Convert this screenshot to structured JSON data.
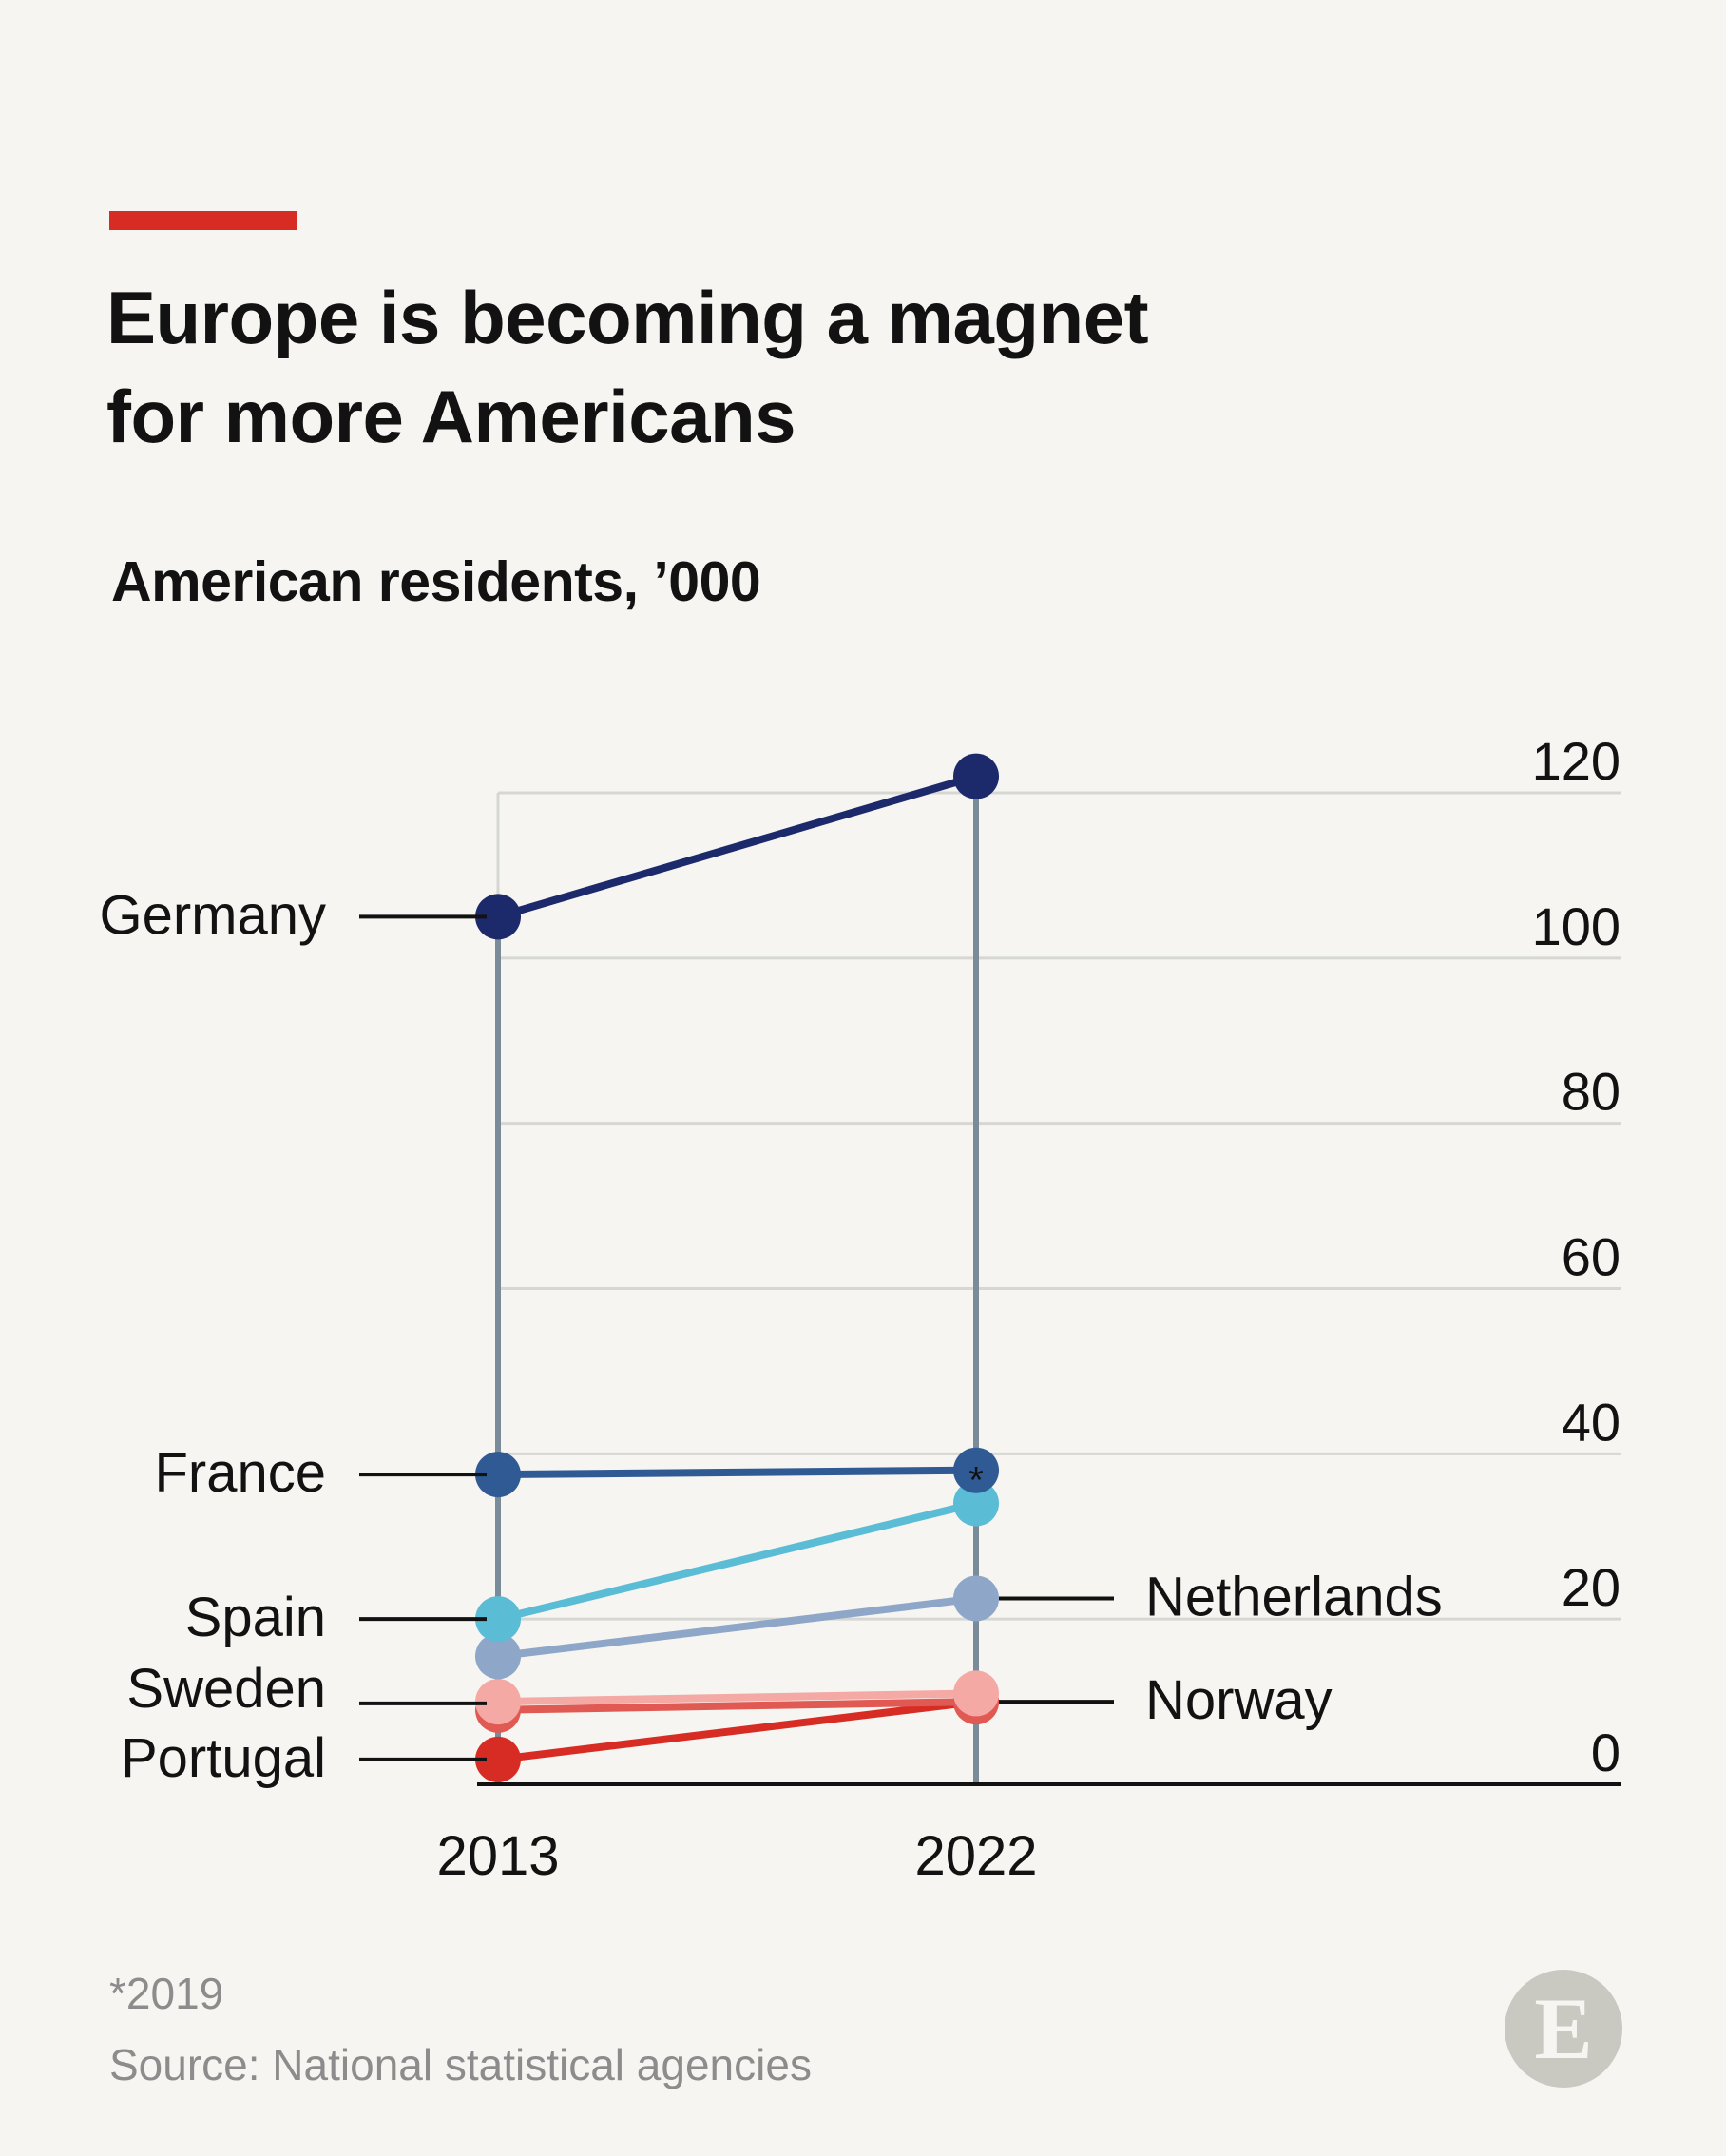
{
  "header": {
    "title_line1": "Europe is becoming a magnet",
    "title_line2": "for more Americans",
    "subtitle": "American residents, ’000",
    "accent_color": "#d72c24"
  },
  "chart_data": {
    "type": "line",
    "title": "Europe is becoming a magnet for more Americans",
    "subtitle": "American residents, ’000",
    "x": [
      "2013",
      "2022"
    ],
    "ylim": [
      0,
      120
    ],
    "yticks": [
      "0",
      "20",
      "40",
      "60",
      "80",
      "100",
      "120"
    ],
    "grid": true,
    "series": [
      {
        "name": "Germany",
        "values": [
          105,
          122
        ],
        "color": "#1c2a6b",
        "label_side": "left"
      },
      {
        "name": "France",
        "values": [
          37.5,
          38
        ],
        "color": "#2f5a94",
        "label_side": "left",
        "end_marker": "*"
      },
      {
        "name": "",
        "values": [
          20,
          34
        ],
        "color": "#5bbcd6"
      },
      {
        "name": "Netherlands",
        "values": [
          15.5,
          22.5
        ],
        "color": "#8ea6c8",
        "label_side": "right"
      },
      {
        "name": "Sweden",
        "values": [
          10,
          11
        ],
        "color": "#f4a9a4",
        "label_side": "left"
      },
      {
        "name": "Norway",
        "values": [
          9,
          10
        ],
        "color": "#e05a53",
        "label_side": "right"
      },
      {
        "name": "Portugal",
        "values": [
          3,
          10
        ],
        "color": "#d72c24",
        "label_side": "left"
      }
    ],
    "extra_labels": [
      {
        "text": "Spain",
        "value": 20,
        "side": "left"
      }
    ]
  },
  "footer": {
    "footnote": "*2019",
    "source": "Source: National statistical agencies",
    "logo_letter": "E"
  }
}
